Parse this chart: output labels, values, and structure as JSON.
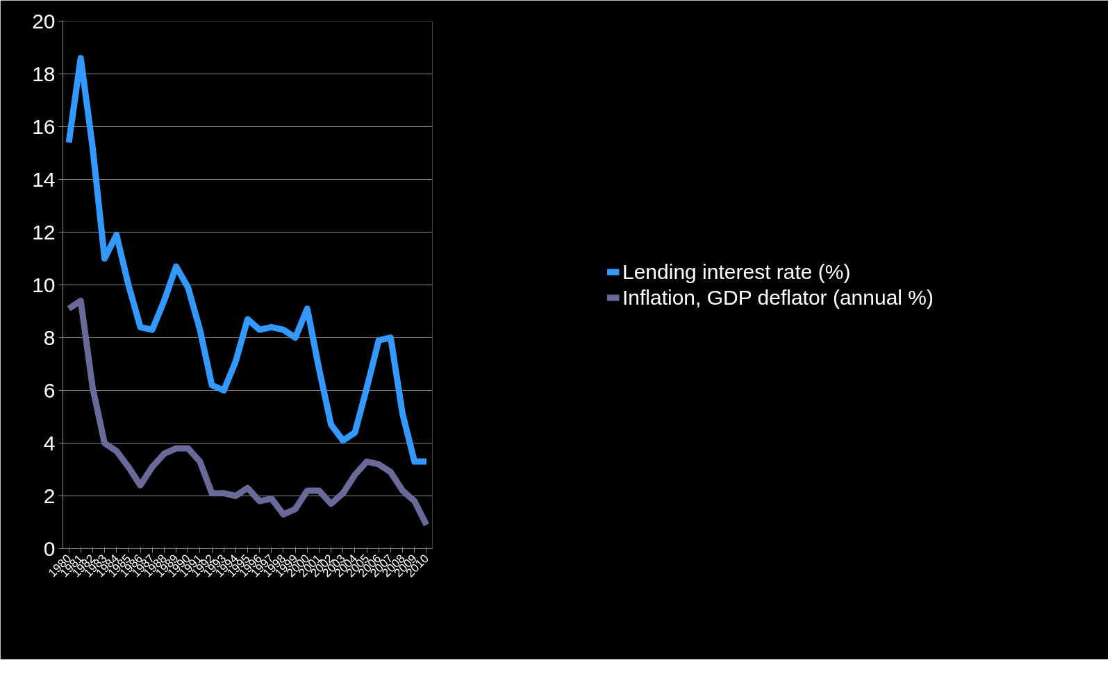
{
  "chart_data": {
    "type": "line",
    "categories": [
      "1980",
      "1981",
      "1982",
      "1983",
      "1984",
      "1985",
      "1986",
      "1987",
      "1988",
      "1989",
      "1990",
      "1991",
      "1992",
      "1993",
      "1994",
      "1995",
      "1996",
      "1997",
      "1998",
      "1999",
      "2000",
      "2001",
      "2002",
      "2003",
      "2004",
      "2005",
      "2006",
      "2007",
      "2008",
      "2009",
      "2010"
    ],
    "series": [
      {
        "name": "Lending interest rate (%)",
        "color": "#3399ff",
        "values": [
          15.4,
          18.6,
          15.2,
          11.0,
          11.9,
          10.0,
          8.4,
          8.3,
          9.4,
          10.7,
          9.9,
          8.3,
          6.2,
          6.0,
          7.1,
          8.7,
          8.3,
          8.4,
          8.3,
          8.0,
          9.1,
          6.8,
          4.7,
          4.1,
          4.4,
          6.1,
          7.9,
          8.0,
          5.1,
          3.3,
          3.3
        ]
      },
      {
        "name": "Inflation, GDP deflator (annual %)",
        "color": "#6a6a9a",
        "values": [
          9.1,
          9.4,
          6.1,
          4.0,
          3.7,
          3.1,
          2.4,
          3.1,
          3.6,
          3.8,
          3.8,
          3.3,
          2.1,
          2.1,
          2.0,
          2.3,
          1.8,
          1.9,
          1.3,
          1.5,
          2.2,
          2.2,
          1.7,
          2.1,
          2.8,
          3.3,
          3.2,
          2.9,
          2.2,
          1.8,
          0.9
        ]
      }
    ],
    "ylim": [
      0,
      20
    ],
    "yticks": [
      0,
      2,
      4,
      6,
      8,
      10,
      12,
      14,
      16,
      18,
      20
    ],
    "grid": "y",
    "legend": "right",
    "marker": "none",
    "line_style": "solid"
  }
}
